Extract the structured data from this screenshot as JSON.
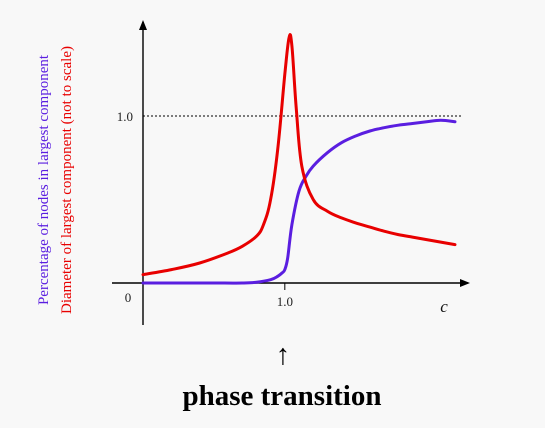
{
  "chart_data": {
    "type": "line",
    "xlabel": "c",
    "ylabels": [
      "Percentage of nodes in largest component",
      "Diameter of largest component (not to scale)"
    ],
    "origin_label": "0",
    "x_tick_labels": [
      "1.0"
    ],
    "y_tick_labels": [
      "1.0"
    ],
    "reference_line": {
      "y": 1.0,
      "style": "dotted"
    },
    "xlim": [
      0,
      2.2
    ],
    "ylim": [
      -0.25,
      1.6
    ],
    "grid": false,
    "colors": {
      "giant": "#5a1ee0",
      "diameter": "#e80000"
    },
    "series": [
      {
        "key": "giant",
        "x": [
          0,
          0.3,
          0.5,
          0.7,
          0.8,
          0.9,
          0.95,
          0.98,
          1.0,
          1.02,
          1.05,
          1.1,
          1.15,
          1.2,
          1.3,
          1.4,
          1.5,
          1.6,
          1.7,
          1.8,
          1.9,
          2.0,
          2.1,
          2.2
        ],
        "y": [
          0.0,
          0.0,
          0.0,
          0.0,
          0.005,
          0.02,
          0.04,
          0.06,
          0.08,
          0.15,
          0.35,
          0.55,
          0.64,
          0.7,
          0.78,
          0.84,
          0.88,
          0.91,
          0.93,
          0.945,
          0.955,
          0.965,
          0.975,
          0.965
        ]
      },
      {
        "key": "diameter",
        "x": [
          0,
          0.2,
          0.4,
          0.6,
          0.7,
          0.8,
          0.85,
          0.9,
          0.95,
          1.0,
          1.03,
          1.05,
          1.08,
          1.12,
          1.2,
          1.3,
          1.4,
          1.5,
          1.6,
          1.7,
          1.8,
          1.9,
          2.0,
          2.1,
          2.2
        ],
        "y": [
          0.05,
          0.08,
          0.12,
          0.18,
          0.22,
          0.28,
          0.35,
          0.5,
          0.8,
          1.25,
          1.47,
          1.42,
          1.05,
          0.7,
          0.5,
          0.43,
          0.39,
          0.36,
          0.335,
          0.31,
          0.29,
          0.275,
          0.26,
          0.245,
          0.23
        ]
      }
    ]
  },
  "annotation": {
    "arrow": "↑",
    "text": "phase transition"
  }
}
